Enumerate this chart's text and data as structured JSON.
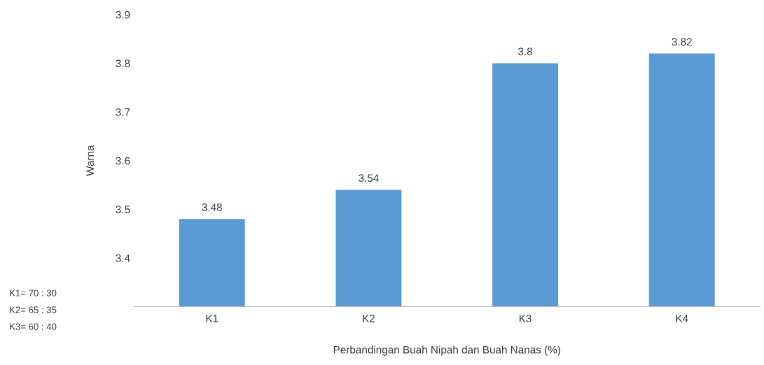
{
  "chart_data": {
    "type": "bar",
    "xlabel": "Perbandingan Buah Nipah dan Buah Nanas (%)",
    "ylabel": "Warna",
    "categories": [
      "K1",
      "K2",
      "K3",
      "K4"
    ],
    "values": [
      3.48,
      3.54,
      3.8,
      3.82
    ],
    "color": "#5b9bd5",
    "ylim": [
      3.3,
      3.9
    ],
    "yticks": [
      3.4,
      3.5,
      3.6,
      3.7,
      3.8,
      3.9
    ],
    "data_labels": true,
    "grid": false,
    "legend": false,
    "annotations": [
      "K1= 70 : 30",
      "K2= 65 : 35",
      "K3= 60 : 40"
    ]
  }
}
